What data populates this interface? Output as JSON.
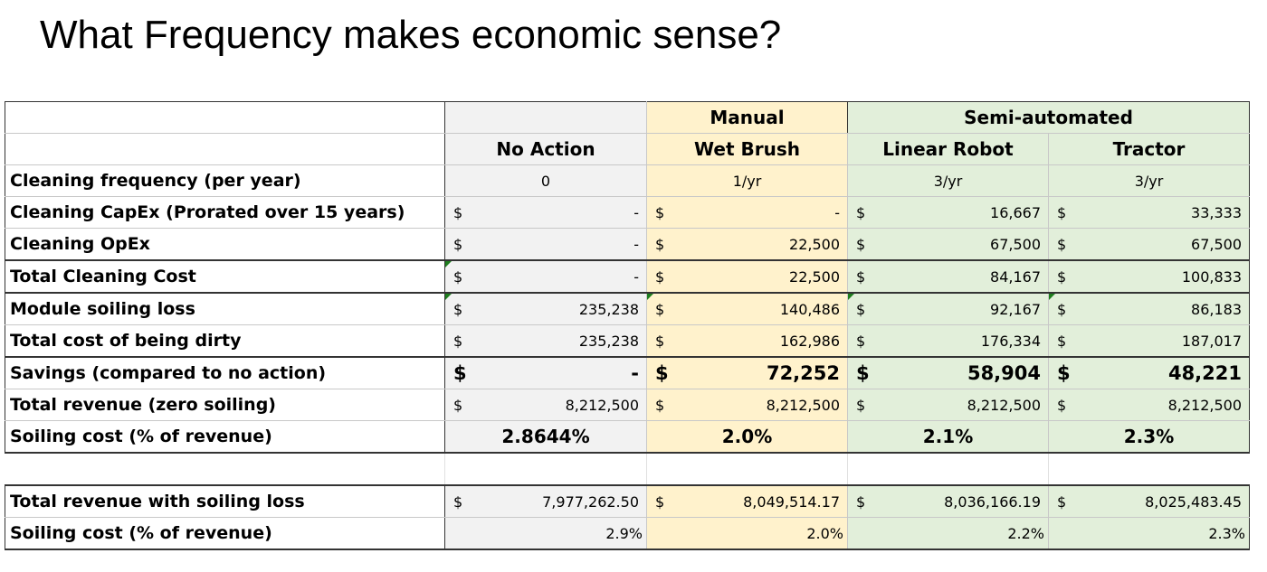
{
  "title": "What Frequency makes economic sense?",
  "groups": {
    "manual": "Manual",
    "semi": "Semi-automated"
  },
  "columns": [
    "No Action",
    "Wet Brush",
    "Linear Robot",
    "Tractor"
  ],
  "currency": "$",
  "rows": [
    {
      "label": "Cleaning frequency (per year)",
      "values": [
        "0",
        "1/yr",
        "3/yr",
        "3/yr"
      ]
    },
    {
      "label": "Cleaning CapEx (Prorated over 15 years)",
      "values": [
        "-",
        "-",
        "16,667",
        "33,333"
      ]
    },
    {
      "label": "Cleaning OpEx",
      "values": [
        "-",
        "22,500",
        "67,500",
        "67,500"
      ]
    },
    {
      "label": "Total Cleaning Cost",
      "values": [
        "-",
        "22,500",
        "84,167",
        "100,833"
      ]
    },
    {
      "label": "Module soiling loss",
      "values": [
        "235,238",
        "140,486",
        "92,167",
        "86,183"
      ]
    },
    {
      "label": "Total cost of being dirty",
      "values": [
        "235,238",
        "162,986",
        "176,334",
        "187,017"
      ]
    },
    {
      "label": "Savings (compared to no action)",
      "values": [
        "-",
        "72,252",
        "58,904",
        "48,221"
      ]
    },
    {
      "label": "Total revenue (zero soiling)",
      "values": [
        "8,212,500",
        "8,212,500",
        "8,212,500",
        "8,212,500"
      ]
    },
    {
      "label": "Soiling cost (% of revenue)",
      "values": [
        "2.8644%",
        "2.0%",
        "2.1%",
        "2.3%"
      ]
    },
    {
      "label": "Total revenue with soiling loss",
      "values": [
        "7,977,262.50",
        "8,049,514.17",
        "8,036,166.19",
        "8,025,483.45"
      ]
    },
    {
      "label": "Soiling cost (% of revenue)",
      "values": [
        "2.9%",
        "2.0%",
        "2.2%",
        "2.3%"
      ]
    }
  ],
  "colors": {
    "no_action": "#f2f2f2",
    "manual": "#fff2cc",
    "semi_automated": "#e2efda"
  }
}
